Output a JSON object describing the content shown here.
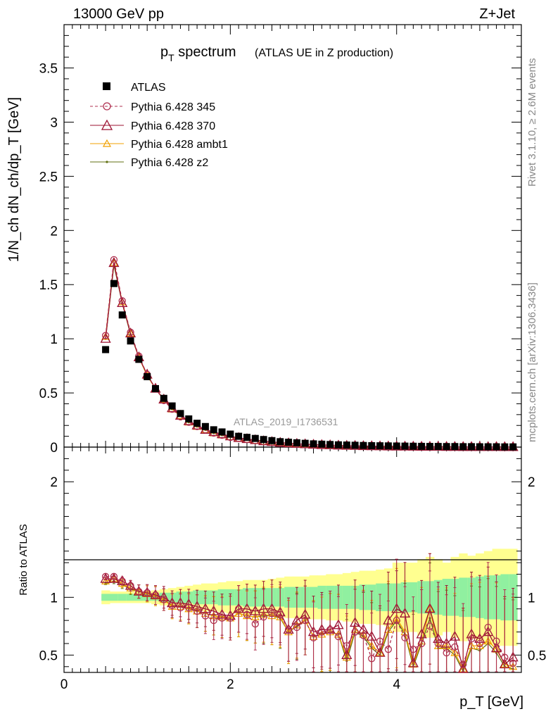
{
  "header": {
    "left": "13000 GeV pp",
    "right": "Z+Jet"
  },
  "title": {
    "main_p": "p",
    "main_sub": "T",
    "main_rest": " spectrum",
    "paren": "(ATLAS UE in Z production)"
  },
  "side": {
    "rivet": "Rivet 3.1.10, ≥ 2.6M events",
    "mcplots": "mcplots.cern.ch [arXiv:1306.3436]"
  },
  "watermark": "ATLAS_2019_I1736531",
  "axes": {
    "y_top_label": "1/N_ch dN_ch/dp_T [GeV]",
    "y_bottom_label": "Ratio to ATLAS",
    "x_label": "p_T [GeV]"
  },
  "legend": {
    "atlas": "ATLAS",
    "s345": "Pythia 6.428 345",
    "s370": "Pythia 6.428 370",
    "ambt1": "Pythia 6.428 ambt1",
    "z2": "Pythia 6.428 z2"
  },
  "colors": {
    "atlas": "#000000",
    "s345": "#b03050",
    "s370": "#9b1030",
    "ambt1": "#f0a000",
    "z2": "#607010",
    "band_inner": "#90f0a0",
    "band_outer": "#ffff90"
  },
  "chart_data": [
    {
      "type": "line",
      "xlim": [
        0,
        5.5
      ],
      "ylim": [
        0,
        3.9
      ],
      "xticks": [
        "0",
        "2",
        "4"
      ],
      "yticks": [
        "0",
        "0.5",
        "1",
        "1.5",
        "2",
        "2.5",
        "3",
        "3.5"
      ],
      "x": [
        0.5,
        0.6,
        0.7,
        0.8,
        0.9,
        1.0,
        1.1,
        1.2,
        1.3,
        1.4,
        1.5,
        1.6,
        1.7,
        1.8,
        1.9,
        2.0,
        2.1,
        2.2,
        2.3,
        2.4,
        2.5,
        2.6,
        2.7,
        2.8,
        2.9,
        3.0,
        3.1,
        3.2,
        3.3,
        3.4,
        3.5,
        3.6,
        3.7,
        3.8,
        3.9,
        4.0,
        4.1,
        4.2,
        4.3,
        4.4,
        4.5,
        4.6,
        4.7,
        4.8,
        4.9,
        5.0,
        5.1,
        5.2,
        5.3,
        5.4
      ],
      "series": [
        {
          "name": "ATLAS",
          "values": [
            0.9,
            1.51,
            1.22,
            0.98,
            0.81,
            0.65,
            0.54,
            0.45,
            0.38,
            0.31,
            0.26,
            0.22,
            0.19,
            0.16,
            0.14,
            0.12,
            0.1,
            0.09,
            0.08,
            0.07,
            0.06,
            0.05,
            0.045,
            0.04,
            0.035,
            0.03,
            0.027,
            0.024,
            0.021,
            0.019,
            0.017,
            0.015,
            0.013,
            0.012,
            0.011,
            0.01,
            0.009,
            0.008,
            0.007,
            0.006,
            0.006,
            0.005,
            0.005,
            0.004,
            0.004,
            0.003,
            0.003,
            0.003,
            0.002,
            0.002
          ]
        },
        {
          "name": "Pythia 6.428 345",
          "values": [
            1.03,
            1.73,
            1.35,
            1.06,
            0.84,
            0.67,
            0.54,
            0.43,
            0.35,
            0.28,
            0.23,
            0.19,
            0.16,
            0.13,
            0.11,
            0.09,
            0.08,
            0.07,
            0.06,
            0.05,
            0.045,
            0.04,
            0.035,
            0.03,
            0.025,
            0.022,
            0.019,
            0.016,
            0.014,
            0.012,
            0.011,
            0.01,
            0.009,
            0.008,
            0.007,
            0.006,
            0.005,
            0.005,
            0.004,
            0.004,
            0.003,
            0.003,
            0.003,
            0.002,
            0.002,
            0.002,
            0.002,
            0.001,
            0.001,
            0.001
          ]
        },
        {
          "name": "Pythia 6.428 370",
          "values": [
            1.0,
            1.7,
            1.33,
            1.05,
            0.83,
            0.67,
            0.54,
            0.44,
            0.36,
            0.29,
            0.24,
            0.2,
            0.16,
            0.14,
            0.12,
            0.1,
            0.085,
            0.075,
            0.065,
            0.055,
            0.048,
            0.041,
            0.036,
            0.031,
            0.027,
            0.023,
            0.02,
            0.018,
            0.015,
            0.013,
            0.012,
            0.01,
            0.009,
            0.008,
            0.007,
            0.006,
            0.006,
            0.005,
            0.004,
            0.004,
            0.004,
            0.003,
            0.003,
            0.002,
            0.002,
            0.002,
            0.002,
            0.002,
            0.001,
            0.001
          ]
        },
        {
          "name": "Pythia 6.428 ambt1",
          "values": [
            1.02,
            1.7,
            1.34,
            1.05,
            0.83,
            0.66,
            0.54,
            0.44,
            0.35,
            0.29,
            0.23,
            0.19,
            0.16,
            0.13,
            0.11,
            0.095,
            0.08,
            0.07,
            0.06,
            0.052,
            0.045,
            0.039,
            0.034,
            0.029,
            0.025,
            0.022,
            0.019,
            0.016,
            0.014,
            0.012,
            0.011,
            0.009,
            0.008,
            0.007,
            0.006,
            0.006,
            0.005,
            0.004,
            0.004,
            0.004,
            0.003,
            0.003,
            0.002,
            0.002,
            0.002,
            0.002,
            0.002,
            0.001,
            0.001,
            0.001
          ]
        },
        {
          "name": "Pythia 6.428 z2",
          "values": [
            1.0,
            1.68,
            1.33,
            1.04,
            0.83,
            0.66,
            0.54,
            0.44,
            0.35,
            0.29,
            0.23,
            0.19,
            0.16,
            0.13,
            0.11,
            0.095,
            0.08,
            0.07,
            0.06,
            0.052,
            0.045,
            0.039,
            0.034,
            0.029,
            0.025,
            0.022,
            0.019,
            0.016,
            0.014,
            0.012,
            0.011,
            0.009,
            0.008,
            0.007,
            0.006,
            0.006,
            0.005,
            0.004,
            0.004,
            0.004,
            0.003,
            0.003,
            0.002,
            0.002,
            0.002,
            0.002,
            0.002,
            0.001,
            0.001,
            0.001
          ]
        }
      ]
    },
    {
      "type": "line",
      "xlim": [
        0,
        5.5
      ],
      "ylim": [
        0.35,
        2.3
      ],
      "xticks": [
        "0",
        "2",
        "4"
      ],
      "yticks": [
        "0.5",
        "1",
        "2"
      ],
      "x": [
        0.5,
        0.6,
        0.7,
        0.8,
        0.9,
        1.0,
        1.1,
        1.2,
        1.3,
        1.4,
        1.5,
        1.6,
        1.7,
        1.8,
        1.9,
        2.0,
        2.1,
        2.2,
        2.3,
        2.4,
        2.5,
        2.6,
        2.7,
        2.8,
        2.9,
        3.0,
        3.1,
        3.2,
        3.3,
        3.4,
        3.5,
        3.6,
        3.7,
        3.8,
        3.9,
        4.0,
        4.1,
        4.2,
        4.3,
        4.4,
        4.5,
        4.6,
        4.7,
        4.8,
        4.9,
        5.0,
        5.1,
        5.2,
        5.3,
        5.4
      ],
      "bands": {
        "inner_halfwidth": [
          0.03,
          0.03,
          0.03,
          0.03,
          0.03,
          0.03,
          0.03,
          0.04,
          0.04,
          0.05,
          0.05,
          0.06,
          0.06,
          0.06,
          0.07,
          0.07,
          0.07,
          0.08,
          0.08,
          0.08,
          0.08,
          0.08,
          0.09,
          0.09,
          0.09,
          0.09,
          0.1,
          0.1,
          0.1,
          0.1,
          0.1,
          0.11,
          0.11,
          0.12,
          0.12,
          0.12,
          0.13,
          0.13,
          0.14,
          0.14,
          0.15,
          0.16,
          0.16,
          0.17,
          0.17,
          0.18,
          0.19,
          0.19,
          0.2,
          0.2
        ],
        "outer_halfwidth": [
          0.06,
          0.05,
          0.05,
          0.05,
          0.05,
          0.05,
          0.06,
          0.07,
          0.08,
          0.09,
          0.1,
          0.11,
          0.12,
          0.12,
          0.13,
          0.14,
          0.14,
          0.15,
          0.15,
          0.15,
          0.16,
          0.17,
          0.18,
          0.18,
          0.18,
          0.19,
          0.19,
          0.2,
          0.2,
          0.21,
          0.22,
          0.23,
          0.23,
          0.24,
          0.25,
          0.3,
          0.3,
          0.3,
          0.33,
          0.35,
          0.33,
          0.3,
          0.35,
          0.38,
          0.36,
          0.38,
          0.4,
          0.42,
          0.42,
          0.42
        ]
      },
      "series": [
        {
          "name": "Pythia 6.428 345",
          "values": [
            1.18,
            1.18,
            1.14,
            1.1,
            1.05,
            1.04,
            1.02,
            0.98,
            0.93,
            0.91,
            0.91,
            0.88,
            0.84,
            0.8,
            0.82,
            0.82,
            0.9,
            0.85,
            0.77,
            0.83,
            0.86,
            0.85,
            0.72,
            0.74,
            0.8,
            0.65,
            0.7,
            0.72,
            0.66,
            0.58,
            0.7,
            0.67,
            0.47,
            0.62,
            0.55,
            0.8,
            0.65,
            0.55,
            0.6,
            0.75,
            0.6,
            0.52,
            0.57,
            0.42,
            0.64,
            0.6,
            0.74,
            0.62,
            0.48,
            0.43
          ]
        },
        {
          "name": "Pythia 6.428 370",
          "values": [
            1.16,
            1.16,
            1.14,
            1.1,
            1.05,
            1.04,
            1.02,
            1.0,
            0.95,
            0.95,
            0.94,
            0.92,
            0.9,
            0.88,
            0.85,
            0.84,
            0.9,
            0.9,
            0.88,
            0.9,
            0.9,
            0.87,
            0.72,
            0.8,
            0.85,
            0.7,
            0.72,
            0.72,
            0.76,
            0.5,
            0.78,
            0.72,
            0.66,
            0.52,
            0.8,
            0.9,
            0.86,
            0.43,
            0.68,
            0.9,
            0.64,
            0.6,
            0.66,
            0.38,
            0.68,
            0.64,
            0.7,
            0.56,
            0.42,
            0.48
          ]
        },
        {
          "name": "Pythia 6.428 ambt1",
          "values": [
            1.14,
            1.16,
            1.12,
            1.08,
            1.05,
            1.03,
            1.01,
            0.98,
            0.92,
            0.92,
            0.9,
            0.88,
            0.86,
            0.84,
            0.83,
            0.82,
            0.86,
            0.84,
            0.83,
            0.85,
            0.84,
            0.83,
            0.7,
            0.76,
            0.8,
            0.66,
            0.68,
            0.7,
            0.68,
            0.48,
            0.72,
            0.68,
            0.58,
            0.52,
            0.72,
            0.82,
            0.7,
            0.42,
            0.62,
            0.9,
            0.58,
            0.58,
            0.52,
            0.38,
            0.58,
            0.58,
            0.62,
            0.55,
            0.42,
            0.4
          ]
        },
        {
          "name": "Pythia 6.428 z2",
          "values": [
            1.12,
            1.14,
            1.11,
            1.07,
            1.05,
            1.03,
            1.01,
            0.98,
            0.93,
            0.92,
            0.9,
            0.88,
            0.86,
            0.84,
            0.83,
            0.82,
            0.86,
            0.84,
            0.83,
            0.84,
            0.84,
            0.82,
            0.7,
            0.75,
            0.8,
            0.66,
            0.68,
            0.7,
            0.68,
            0.45,
            0.7,
            0.66,
            0.56,
            0.5,
            0.7,
            0.8,
            0.68,
            0.4,
            0.6,
            0.82,
            0.56,
            0.56,
            0.5,
            0.36,
            0.56,
            0.54,
            0.6,
            0.52,
            0.4,
            0.38
          ]
        }
      ]
    }
  ]
}
